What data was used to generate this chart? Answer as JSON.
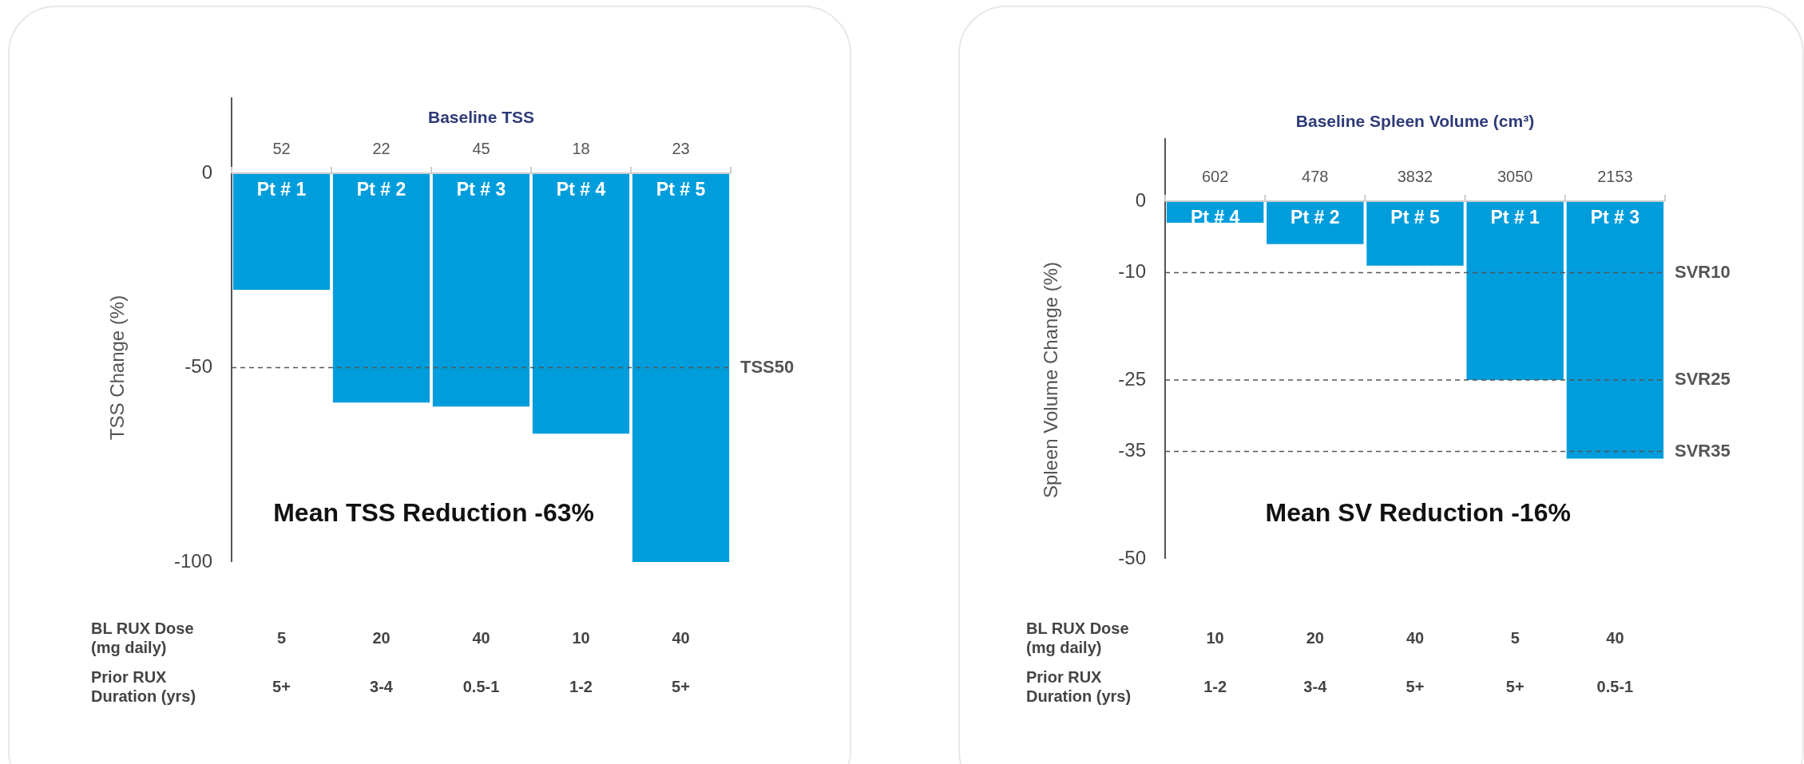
{
  "chart_data": [
    {
      "type": "bar",
      "title": "Baseline TSS",
      "categories": [
        "Pt # 1",
        "Pt # 2",
        "Pt # 3",
        "Pt # 4",
        "Pt # 5"
      ],
      "values": [
        -30,
        -59,
        -60,
        -67,
        -100
      ],
      "color": "#009ddc",
      "ylabel": "TSS Change (%)",
      "ylim": [
        -100,
        0
      ],
      "yticks": [
        -100,
        -50,
        0
      ],
      "grid": false,
      "legend": false,
      "ref_lines": [
        {
          "axis": "y",
          "value": -50,
          "label": "TSS50",
          "color": "#555555",
          "line_style": "dashed"
        }
      ],
      "annotations": [
        "52",
        "22",
        "45",
        "18",
        "23",
        "BL RUX Dose\n(mg daily)",
        "5",
        "20",
        "40",
        "10",
        "40",
        "Prior RUX\nDuration (yrs)",
        "5+",
        "3-4",
        "0.5-1",
        "1-2",
        "5+",
        "Mean TSS Reduction -63%"
      ]
    },
    {
      "type": "bar",
      "title": "Baseline Spleen Volume (cm³)",
      "categories": [
        "Pt # 4",
        "Pt # 2",
        "Pt # 5",
        "Pt # 1",
        "Pt # 3"
      ],
      "values": [
        -3,
        -6,
        -9,
        -25,
        -36
      ],
      "color": "#009ddc",
      "ylabel": "Spleen Volume Change (%)",
      "ylim": [
        -50,
        0
      ],
      "yticks": [
        -50,
        -35,
        -25,
        -10,
        0
      ],
      "grid": false,
      "legend": false,
      "ref_lines": [
        {
          "axis": "y",
          "value": -10,
          "label": "SVR10",
          "color": "#555555",
          "line_style": "dashed"
        },
        {
          "axis": "y",
          "value": -25,
          "label": "SVR25",
          "color": "#555555",
          "line_style": "dashed"
        },
        {
          "axis": "y",
          "value": -35,
          "label": "SVR35",
          "color": "#555555",
          "line_style": "dashed"
        }
      ],
      "annotations": [
        "602",
        "478",
        "3832",
        "3050",
        "2153",
        "BL RUX Dose\n(mg daily)",
        "10",
        "20",
        "40",
        "5",
        "40",
        "Prior RUX\nDuration (yrs)",
        "1-2",
        "3-4",
        "5+",
        "5+",
        "0.5-1",
        "Mean SV Reduction -16%"
      ]
    }
  ]
}
